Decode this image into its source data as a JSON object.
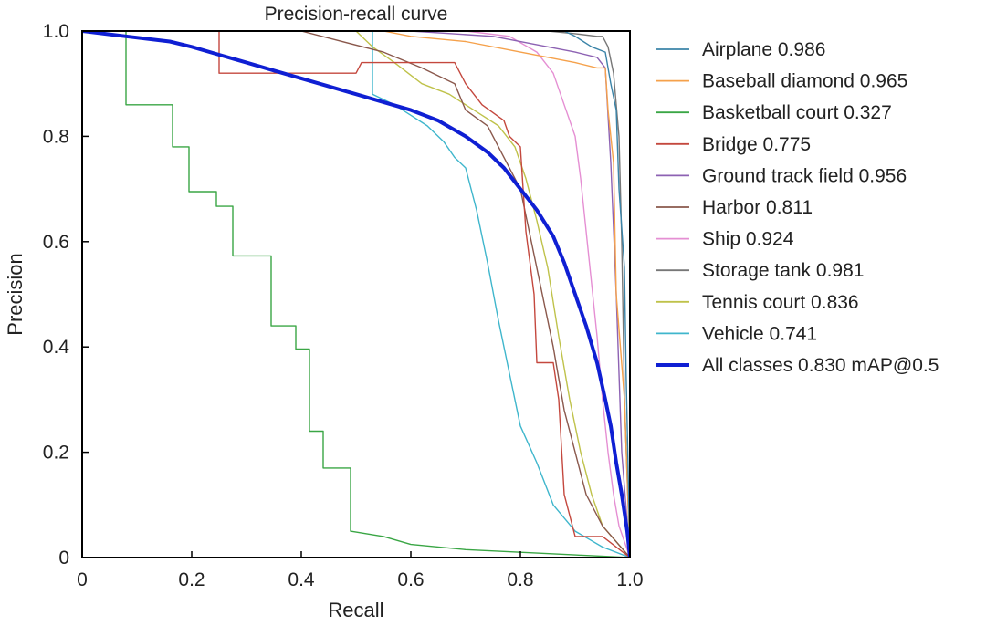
{
  "chart_data": {
    "type": "line",
    "title": "Precision-recall curve",
    "xlabel": "Recall",
    "ylabel": "Precision",
    "xlim": [
      0,
      1
    ],
    "ylim": [
      0,
      1
    ],
    "xticks": [
      {
        "value": 0,
        "label": "0"
      },
      {
        "value": 0.2,
        "label": "0.2"
      },
      {
        "value": 0.4,
        "label": "0.4"
      },
      {
        "value": 0.6,
        "label": "0.6"
      },
      {
        "value": 0.8,
        "label": "0.8"
      },
      {
        "value": 1.0,
        "label": "1.0"
      }
    ],
    "yticks": [
      {
        "value": 0,
        "label": "0"
      },
      {
        "value": 0.2,
        "label": "0.2"
      },
      {
        "value": 0.4,
        "label": "0.4"
      },
      {
        "value": 0.6,
        "label": "0.6"
      },
      {
        "value": 0.8,
        "label": "0.8"
      },
      {
        "value": 1.0,
        "label": "1.0"
      }
    ],
    "grid": false,
    "legend_position": "right",
    "series": [
      {
        "name": "Airplane",
        "label": "Airplane 0.986",
        "ap": 0.986,
        "color": "#3b84a8",
        "points": [
          [
            0,
            1
          ],
          [
            0.88,
            1
          ],
          [
            0.9,
            0.99
          ],
          [
            0.93,
            0.97
          ],
          [
            0.955,
            0.96
          ],
          [
            0.965,
            0.9
          ],
          [
            0.975,
            0.85
          ],
          [
            0.98,
            0.7
          ],
          [
            0.99,
            0.55
          ],
          [
            0.993,
            0.35
          ],
          [
            1.0,
            0.0
          ]
        ]
      },
      {
        "name": "Baseball diamond",
        "label": "Baseball diamond 0.965",
        "ap": 0.965,
        "color": "#f5a14b",
        "points": [
          [
            0,
            1
          ],
          [
            0.55,
            1
          ],
          [
            0.6,
            0.99
          ],
          [
            0.7,
            0.98
          ],
          [
            0.8,
            0.96
          ],
          [
            0.9,
            0.94
          ],
          [
            0.94,
            0.93
          ],
          [
            0.955,
            0.93
          ],
          [
            0.96,
            0.85
          ],
          [
            0.97,
            0.75
          ],
          [
            0.975,
            0.5
          ],
          [
            0.99,
            0.3
          ],
          [
            1.0,
            0.0
          ]
        ]
      },
      {
        "name": "Basketball court",
        "label": "Basketball court 0.327",
        "ap": 0.327,
        "color": "#3aa645",
        "points": [
          [
            0,
            1
          ],
          [
            0.08,
            1
          ],
          [
            0.08,
            0.86
          ],
          [
            0.165,
            0.86
          ],
          [
            0.165,
            0.78
          ],
          [
            0.195,
            0.78
          ],
          [
            0.195,
            0.695
          ],
          [
            0.245,
            0.695
          ],
          [
            0.245,
            0.667
          ],
          [
            0.275,
            0.667
          ],
          [
            0.275,
            0.573
          ],
          [
            0.345,
            0.573
          ],
          [
            0.345,
            0.44
          ],
          [
            0.39,
            0.44
          ],
          [
            0.39,
            0.396
          ],
          [
            0.415,
            0.396
          ],
          [
            0.415,
            0.24
          ],
          [
            0.44,
            0.24
          ],
          [
            0.44,
            0.17
          ],
          [
            0.49,
            0.17
          ],
          [
            0.49,
            0.05
          ],
          [
            0.55,
            0.04
          ],
          [
            0.6,
            0.025
          ],
          [
            0.7,
            0.015
          ],
          [
            0.8,
            0.01
          ],
          [
            0.9,
            0.005
          ],
          [
            1.0,
            0.0
          ]
        ]
      },
      {
        "name": "Bridge",
        "label": "Bridge 0.775",
        "ap": 0.775,
        "color": "#c4483e",
        "points": [
          [
            0,
            1
          ],
          [
            0.25,
            1
          ],
          [
            0.25,
            0.92
          ],
          [
            0.5,
            0.92
          ],
          [
            0.51,
            0.94
          ],
          [
            0.68,
            0.94
          ],
          [
            0.7,
            0.9
          ],
          [
            0.73,
            0.86
          ],
          [
            0.77,
            0.83
          ],
          [
            0.78,
            0.8
          ],
          [
            0.8,
            0.78
          ],
          [
            0.81,
            0.62
          ],
          [
            0.825,
            0.5
          ],
          [
            0.83,
            0.37
          ],
          [
            0.86,
            0.37
          ],
          [
            0.87,
            0.3
          ],
          [
            0.88,
            0.12
          ],
          [
            0.9,
            0.04
          ],
          [
            0.95,
            0.04
          ],
          [
            1.0,
            0.0
          ]
        ]
      },
      {
        "name": "Ground track field",
        "label": "Ground track field 0.956",
        "ap": 0.956,
        "color": "#8d62b3",
        "points": [
          [
            0,
            1
          ],
          [
            0.6,
            1
          ],
          [
            0.75,
            0.99
          ],
          [
            0.85,
            0.97
          ],
          [
            0.9,
            0.96
          ],
          [
            0.94,
            0.95
          ],
          [
            0.955,
            0.93
          ],
          [
            0.965,
            0.75
          ],
          [
            0.975,
            0.5
          ],
          [
            0.985,
            0.2
          ],
          [
            1.0,
            0.0
          ]
        ]
      },
      {
        "name": "Harbor",
        "label": "Harbor 0.811",
        "ap": 0.811,
        "color": "#8a584c",
        "points": [
          [
            0,
            1
          ],
          [
            0.4,
            1
          ],
          [
            0.55,
            0.96
          ],
          [
            0.62,
            0.93
          ],
          [
            0.68,
            0.9
          ],
          [
            0.7,
            0.85
          ],
          [
            0.74,
            0.82
          ],
          [
            0.76,
            0.78
          ],
          [
            0.8,
            0.7
          ],
          [
            0.82,
            0.6
          ],
          [
            0.84,
            0.5
          ],
          [
            0.86,
            0.4
          ],
          [
            0.88,
            0.28
          ],
          [
            0.9,
            0.2
          ],
          [
            0.92,
            0.12
          ],
          [
            0.95,
            0.06
          ],
          [
            1.0,
            0.0
          ]
        ]
      },
      {
        "name": "Ship",
        "label": "Ship 0.924",
        "ap": 0.924,
        "color": "#e58fd3",
        "points": [
          [
            0,
            1
          ],
          [
            0.7,
            1
          ],
          [
            0.78,
            0.99
          ],
          [
            0.83,
            0.96
          ],
          [
            0.86,
            0.92
          ],
          [
            0.88,
            0.86
          ],
          [
            0.9,
            0.8
          ],
          [
            0.91,
            0.72
          ],
          [
            0.92,
            0.62
          ],
          [
            0.93,
            0.52
          ],
          [
            0.94,
            0.42
          ],
          [
            0.95,
            0.3
          ],
          [
            0.96,
            0.2
          ],
          [
            0.97,
            0.12
          ],
          [
            0.98,
            0.06
          ],
          [
            1.0,
            0.0
          ]
        ]
      },
      {
        "name": "Storage tank",
        "label": "Storage tank 0.981",
        "ap": 0.981,
        "color": "#777777",
        "points": [
          [
            0,
            1
          ],
          [
            0.85,
            1
          ],
          [
            0.9,
            0.995
          ],
          [
            0.94,
            0.99
          ],
          [
            0.95,
            0.99
          ],
          [
            0.96,
            0.97
          ],
          [
            0.97,
            0.92
          ],
          [
            0.98,
            0.8
          ],
          [
            0.985,
            0.6
          ],
          [
            0.99,
            0.3
          ],
          [
            1.0,
            0.0
          ]
        ]
      },
      {
        "name": "Tennis court",
        "label": "Tennis court 0.836",
        "ap": 0.836,
        "color": "#bfc24a",
        "points": [
          [
            0,
            1
          ],
          [
            0.5,
            1
          ],
          [
            0.53,
            0.97
          ],
          [
            0.57,
            0.94
          ],
          [
            0.62,
            0.9
          ],
          [
            0.67,
            0.88
          ],
          [
            0.7,
            0.86
          ],
          [
            0.73,
            0.84
          ],
          [
            0.76,
            0.82
          ],
          [
            0.79,
            0.78
          ],
          [
            0.81,
            0.72
          ],
          [
            0.83,
            0.64
          ],
          [
            0.85,
            0.55
          ],
          [
            0.87,
            0.42
          ],
          [
            0.89,
            0.3
          ],
          [
            0.91,
            0.2
          ],
          [
            0.93,
            0.12
          ],
          [
            0.95,
            0.06
          ],
          [
            1.0,
            0.0
          ]
        ]
      },
      {
        "name": "Vehicle",
        "label": "Vehicle 0.741",
        "ap": 0.741,
        "color": "#3fb6cc",
        "points": [
          [
            0,
            1
          ],
          [
            0.53,
            1
          ],
          [
            0.53,
            0.88
          ],
          [
            0.57,
            0.86
          ],
          [
            0.6,
            0.84
          ],
          [
            0.63,
            0.82
          ],
          [
            0.66,
            0.79
          ],
          [
            0.68,
            0.76
          ],
          [
            0.7,
            0.74
          ],
          [
            0.72,
            0.66
          ],
          [
            0.74,
            0.56
          ],
          [
            0.76,
            0.45
          ],
          [
            0.78,
            0.35
          ],
          [
            0.8,
            0.25
          ],
          [
            0.83,
            0.18
          ],
          [
            0.86,
            0.1
          ],
          [
            0.9,
            0.05
          ],
          [
            0.95,
            0.02
          ],
          [
            1.0,
            0.0
          ]
        ]
      },
      {
        "name": "All classes",
        "label": "All classes 0.830 mAP@0.5",
        "ap": 0.83,
        "color": "#0f1fd3",
        "bold": true,
        "points": [
          [
            0,
            1
          ],
          [
            0.08,
            0.99
          ],
          [
            0.16,
            0.98
          ],
          [
            0.2,
            0.97
          ],
          [
            0.25,
            0.955
          ],
          [
            0.3,
            0.94
          ],
          [
            0.35,
            0.925
          ],
          [
            0.4,
            0.91
          ],
          [
            0.45,
            0.895
          ],
          [
            0.5,
            0.88
          ],
          [
            0.55,
            0.865
          ],
          [
            0.6,
            0.85
          ],
          [
            0.65,
            0.83
          ],
          [
            0.7,
            0.8
          ],
          [
            0.74,
            0.77
          ],
          [
            0.77,
            0.74
          ],
          [
            0.8,
            0.7
          ],
          [
            0.83,
            0.66
          ],
          [
            0.86,
            0.61
          ],
          [
            0.88,
            0.56
          ],
          [
            0.9,
            0.5
          ],
          [
            0.92,
            0.44
          ],
          [
            0.94,
            0.37
          ],
          [
            0.955,
            0.3
          ],
          [
            0.965,
            0.25
          ],
          [
            0.975,
            0.18
          ],
          [
            0.985,
            0.12
          ],
          [
            0.995,
            0.05
          ],
          [
            1.0,
            0.0
          ]
        ]
      }
    ]
  }
}
